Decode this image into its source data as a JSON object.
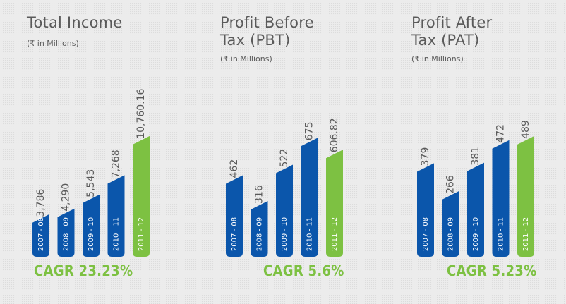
{
  "colors": {
    "bar": "#0b56ab",
    "highlight": "#7dc142",
    "text": "#5a5a5a",
    "label": "#ffffff"
  },
  "chart_data": [
    {
      "type": "bar",
      "title": "Total Income",
      "unit": "(₹ in Millions)",
      "categories": [
        "2007 - 08",
        "2008 - 09",
        "2009 - 10",
        "2010 - 11",
        "2011 - 12"
      ],
      "values": [
        3786,
        4290,
        5543,
        7268,
        10760.16
      ],
      "value_labels": [
        "3,786",
        "4,290",
        "5,543",
        "7,268",
        "10,760.16"
      ],
      "highlight_index": 4,
      "ylim": [
        0,
        11000
      ],
      "cagr": "CAGR 23.23%"
    },
    {
      "type": "bar",
      "title": "Profit Before\nTax (PBT)",
      "unit": "(₹ in Millions)",
      "categories": [
        "2007 - 08",
        "2008 - 09",
        "2009 - 10",
        "2010 - 11",
        "2011 - 12"
      ],
      "values": [
        462,
        316,
        522,
        675,
        606.82
      ],
      "value_labels": [
        "462",
        "316",
        "522",
        "675",
        "606.82"
      ],
      "highlight_index": 4,
      "ylim": [
        0,
        700
      ],
      "cagr": "CAGR 5.6%"
    },
    {
      "type": "bar",
      "title": "Profit After\nTax (PAT)",
      "unit": "(₹ in Millions)",
      "categories": [
        "2007 - 08",
        "2008 - 09",
        "2009 - 10",
        "2010 - 11",
        "2011 - 12"
      ],
      "values": [
        379,
        266,
        381,
        472,
        489
      ],
      "value_labels": [
        "379",
        "266",
        "381",
        "472",
        "489"
      ],
      "highlight_index": 4,
      "ylim": [
        0,
        500
      ],
      "cagr": "CAGR 5.23%"
    }
  ]
}
